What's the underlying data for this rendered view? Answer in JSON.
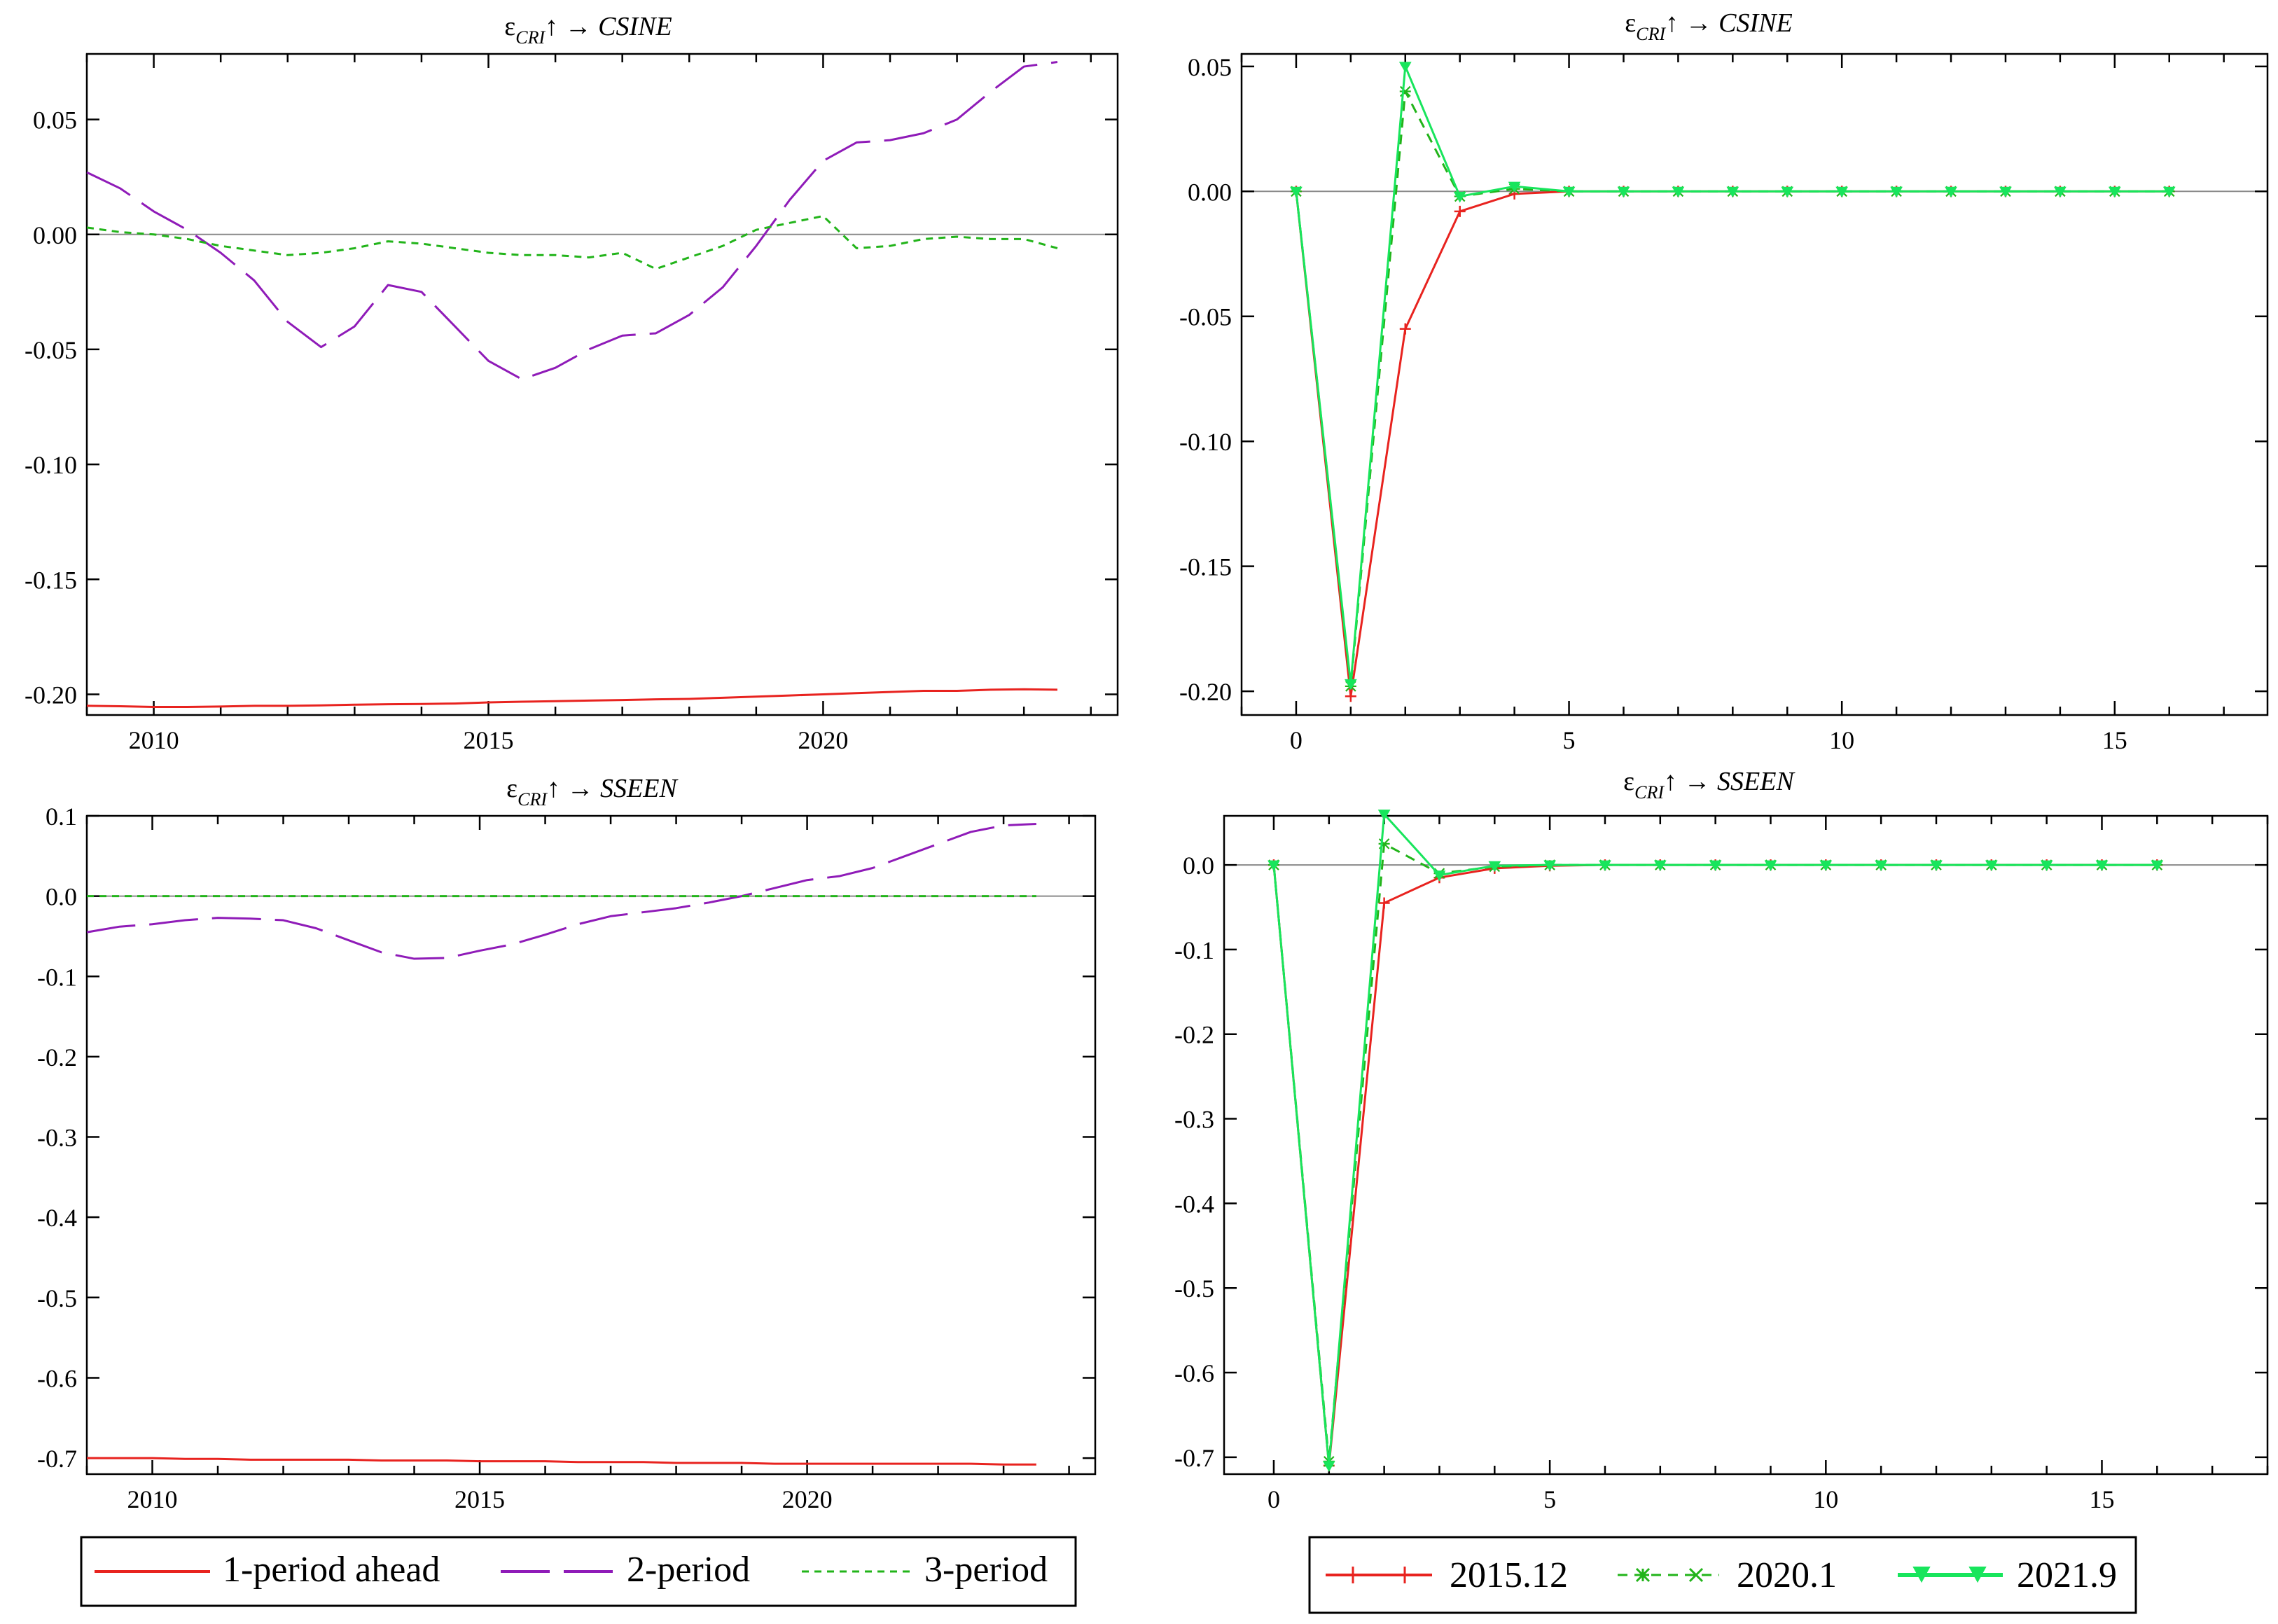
{
  "legend_left": [
    "1-period ahead",
    "2-period",
    "3-period"
  ],
  "legend_right": [
    "2015.12",
    "2020.1",
    "2021.9"
  ],
  "colors": {
    "red": "#e8231f",
    "purple": "#8f1bb8",
    "green": "#22b41a",
    "bright_green": "#18e55c",
    "zero_line": "#8a8a8a"
  },
  "chart_data": [
    {
      "type": "line",
      "title": "ε_CRI ↑ → CSINE",
      "xlabel": "",
      "ylabel": "",
      "xlim": [
        2009.0,
        2024.4
      ],
      "ylim": [
        -0.209,
        0.0785
      ],
      "xticks": [
        2010,
        2015,
        2020
      ],
      "yticks": [
        -0.2,
        -0.15,
        -0.1,
        -0.05,
        0.0,
        0.05
      ],
      "x": [
        2009.0,
        2009.5,
        2010.0,
        2010.5,
        2011.0,
        2011.5,
        2012.0,
        2012.5,
        2013.0,
        2013.5,
        2014.0,
        2014.5,
        2015.0,
        2015.5,
        2016.0,
        2016.5,
        2017.0,
        2017.5,
        2018.0,
        2018.5,
        2019.0,
        2019.5,
        2020.0,
        2020.5,
        2021.0,
        2021.5,
        2022.0,
        2022.5,
        2023.0,
        2023.5
      ],
      "series": [
        {
          "name": "1-period ahead",
          "color": "red",
          "dash": "solid",
          "values": [
            -0.205,
            -0.2052,
            -0.2055,
            -0.2055,
            -0.2053,
            -0.205,
            -0.205,
            -0.2048,
            -0.2045,
            -0.2043,
            -0.2042,
            -0.204,
            -0.2035,
            -0.2032,
            -0.203,
            -0.2027,
            -0.2025,
            -0.2022,
            -0.202,
            -0.2015,
            -0.201,
            -0.2005,
            -0.2,
            -0.1995,
            -0.199,
            -0.1985,
            -0.1985,
            -0.198,
            -0.1978,
            -0.198
          ]
        },
        {
          "name": "2-period",
          "color": "purple",
          "dash": "long",
          "values": [
            0.027,
            0.02,
            0.01,
            0.002,
            -0.008,
            -0.02,
            -0.038,
            -0.049,
            -0.04,
            -0.022,
            -0.025,
            -0.04,
            -0.055,
            -0.063,
            -0.058,
            -0.05,
            -0.044,
            -0.043,
            -0.035,
            -0.023,
            -0.005,
            0.015,
            0.032,
            0.04,
            0.041,
            0.044,
            0.05,
            0.062,
            0.073,
            0.075
          ]
        },
        {
          "name": "3-period",
          "color": "green",
          "dash": "short",
          "values": [
            0.003,
            0.001,
            0.0,
            -0.002,
            -0.005,
            -0.007,
            -0.009,
            -0.008,
            -0.006,
            -0.003,
            -0.004,
            -0.006,
            -0.008,
            -0.009,
            -0.009,
            -0.01,
            -0.008,
            -0.015,
            -0.01,
            -0.005,
            0.002,
            0.005,
            0.008,
            -0.006,
            -0.005,
            -0.002,
            -0.001,
            -0.002,
            -0.002,
            -0.006
          ]
        }
      ]
    },
    {
      "type": "line",
      "title": "ε_CRI ↑ → CSINE",
      "xlabel": "",
      "ylabel": "",
      "xlim": [
        -1.0,
        17.8
      ],
      "ylim": [
        -0.2095,
        0.055
      ],
      "xticks": [
        0,
        5,
        10,
        15
      ],
      "yticks": [
        -0.2,
        -0.15,
        -0.1,
        -0.05,
        0.0,
        0.05
      ],
      "x": [
        0,
        1,
        2,
        3,
        4,
        5,
        6,
        7,
        8,
        9,
        10,
        11,
        12,
        13,
        14,
        15,
        16
      ],
      "series": [
        {
          "name": "2015.12",
          "color": "red",
          "dash": "solid",
          "marker": "plus",
          "values": [
            0,
            -0.202,
            -0.055,
            -0.008,
            -0.001,
            0,
            0,
            0,
            0,
            0,
            0,
            0,
            0,
            0,
            0,
            0,
            0
          ]
        },
        {
          "name": "2020.1",
          "color": "green",
          "dash": "dash",
          "marker": "star",
          "values": [
            0,
            -0.198,
            0.04,
            -0.002,
            0.001,
            0,
            0,
            0,
            0,
            0,
            0,
            0,
            0,
            0,
            0,
            0,
            0
          ]
        },
        {
          "name": "2021.9",
          "color": "bright_green",
          "dash": "solid",
          "marker": "triangle",
          "values": [
            0,
            -0.197,
            0.05,
            -0.002,
            0.002,
            0,
            0,
            0,
            0,
            0,
            0,
            0,
            0,
            0,
            0,
            0,
            0
          ]
        }
      ]
    },
    {
      "type": "line",
      "title": "ε_CRI ↑ → SSEEN",
      "xlabel": "",
      "ylabel": "",
      "xlim": [
        2009.0,
        2024.4
      ],
      "ylim": [
        -0.72,
        0.1
      ],
      "xticks": [
        2010,
        2015,
        2020
      ],
      "yticks": [
        -0.7,
        -0.6,
        -0.5,
        -0.4,
        -0.3,
        -0.2,
        -0.1,
        0.0,
        0.1
      ],
      "x": [
        2009.0,
        2009.5,
        2010.0,
        2010.5,
        2011.0,
        2011.5,
        2012.0,
        2012.5,
        2013.0,
        2013.5,
        2014.0,
        2014.5,
        2015.0,
        2015.5,
        2016.0,
        2016.5,
        2017.0,
        2017.5,
        2018.0,
        2018.5,
        2019.0,
        2019.5,
        2020.0,
        2020.5,
        2021.0,
        2021.5,
        2022.0,
        2022.5,
        2023.0,
        2023.5
      ],
      "series": [
        {
          "name": "1-period ahead",
          "color": "red",
          "dash": "solid",
          "values": [
            -0.7,
            -0.7,
            -0.7,
            -0.701,
            -0.701,
            -0.702,
            -0.702,
            -0.702,
            -0.702,
            -0.703,
            -0.703,
            -0.703,
            -0.704,
            -0.704,
            -0.704,
            -0.705,
            -0.705,
            -0.705,
            -0.706,
            -0.706,
            -0.706,
            -0.707,
            -0.707,
            -0.707,
            -0.707,
            -0.707,
            -0.707,
            -0.707,
            -0.708,
            -0.708
          ]
        },
        {
          "name": "2-period",
          "color": "purple",
          "dash": "long",
          "values": [
            -0.045,
            -0.038,
            -0.035,
            -0.03,
            -0.027,
            -0.028,
            -0.03,
            -0.04,
            -0.055,
            -0.07,
            -0.078,
            -0.077,
            -0.068,
            -0.06,
            -0.048,
            -0.035,
            -0.025,
            -0.02,
            -0.015,
            -0.008,
            0.0,
            0.01,
            0.02,
            0.025,
            0.035,
            0.05,
            0.065,
            0.08,
            0.088,
            0.09
          ]
        },
        {
          "name": "3-period",
          "color": "green",
          "dash": "short",
          "values": [
            0,
            0,
            0,
            0,
            0,
            0,
            0,
            0,
            0,
            0,
            0,
            0,
            0,
            0,
            0,
            0,
            0,
            0,
            0,
            0,
            0,
            0,
            0,
            0,
            0,
            0,
            0,
            0,
            0,
            0
          ]
        }
      ]
    },
    {
      "type": "line",
      "title": "ε_CRI ↑ → SSEEN",
      "xlabel": "",
      "ylabel": "",
      "xlim": [
        -0.9,
        18.0
      ],
      "ylim": [
        -0.72,
        0.058
      ],
      "xticks": [
        0,
        5,
        10,
        15
      ],
      "yticks": [
        -0.7,
        -0.6,
        -0.5,
        -0.4,
        -0.3,
        -0.2,
        -0.1,
        0.0
      ],
      "x": [
        0,
        1,
        2,
        3,
        4,
        5,
        6,
        7,
        8,
        9,
        10,
        11,
        12,
        13,
        14,
        15,
        16
      ],
      "series": [
        {
          "name": "2015.12",
          "color": "red",
          "dash": "solid",
          "marker": "plus",
          "values": [
            0,
            -0.71,
            -0.045,
            -0.015,
            -0.004,
            -0.001,
            0,
            0,
            0,
            0,
            0,
            0,
            0,
            0,
            0,
            0,
            0
          ]
        },
        {
          "name": "2020.1",
          "color": "green",
          "dash": "dash",
          "marker": "star",
          "values": [
            0,
            -0.705,
            0.025,
            -0.01,
            -0.002,
            0,
            0,
            0,
            0,
            0,
            0,
            0,
            0,
            0,
            0,
            0,
            0
          ]
        },
        {
          "name": "2021.9",
          "color": "bright_green",
          "dash": "solid",
          "marker": "triangle",
          "values": [
            0,
            -0.71,
            0.06,
            -0.012,
            -0.001,
            0,
            0,
            0,
            0,
            0,
            0,
            0,
            0,
            0,
            0,
            0,
            0
          ]
        }
      ]
    }
  ]
}
